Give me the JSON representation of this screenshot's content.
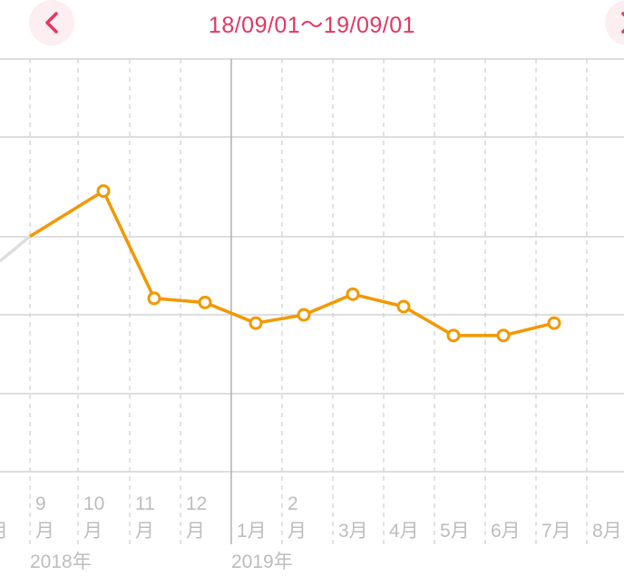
{
  "header": {
    "range_title": "18/09/01〜19/09/01",
    "prev_icon": "chevron-left-icon",
    "next_icon": "chevron-right-icon",
    "accent_color": "#e8355f"
  },
  "chart_data": {
    "type": "line",
    "title": "",
    "xlabel": "",
    "ylabel": "",
    "grid": true,
    "line_color": "#f39800",
    "out_of_range_color": "#dddddd",
    "x_tick_labels": [
      {
        "line1": "",
        "line2": "月",
        "year": ""
      },
      {
        "line1": "9",
        "line2": "月",
        "year": "2018年"
      },
      {
        "line1": "10",
        "line2": "月",
        "year": ""
      },
      {
        "line1": "11",
        "line2": "月",
        "year": ""
      },
      {
        "line1": "12",
        "line2": "月",
        "year": ""
      },
      {
        "line1": "",
        "line2": "1月",
        "year": "2019年"
      },
      {
        "line1": "2",
        "line2": "月",
        "year": ""
      },
      {
        "line1": "",
        "line2": "3月",
        "year": ""
      },
      {
        "line1": "",
        "line2": "4月",
        "year": ""
      },
      {
        "line1": "",
        "line2": "5月",
        "year": ""
      },
      {
        "line1": "",
        "line2": "6月",
        "year": ""
      },
      {
        "line1": "",
        "line2": "7月",
        "year": ""
      },
      {
        "line1": "",
        "line2": "8月",
        "year": ""
      }
    ],
    "series": [
      {
        "points": [
          {
            "x": "2018-08",
            "y": 0.51,
            "out_of_range": true
          },
          {
            "x": "2018-09",
            "y": 0.57,
            "marker": false
          },
          {
            "x": "2018-10",
            "y": 0.68
          },
          {
            "x": "2018-11",
            "y": 0.42
          },
          {
            "x": "2018-12",
            "y": 0.41
          },
          {
            "x": "2019-01",
            "y": 0.36
          },
          {
            "x": "2019-02",
            "y": 0.38
          },
          {
            "x": "2019-03",
            "y": 0.43
          },
          {
            "x": "2019-04",
            "y": 0.4
          },
          {
            "x": "2019-05",
            "y": 0.33
          },
          {
            "x": "2019-06",
            "y": 0.33
          },
          {
            "x": "2019-07",
            "y": 0.36
          }
        ]
      }
    ]
  }
}
